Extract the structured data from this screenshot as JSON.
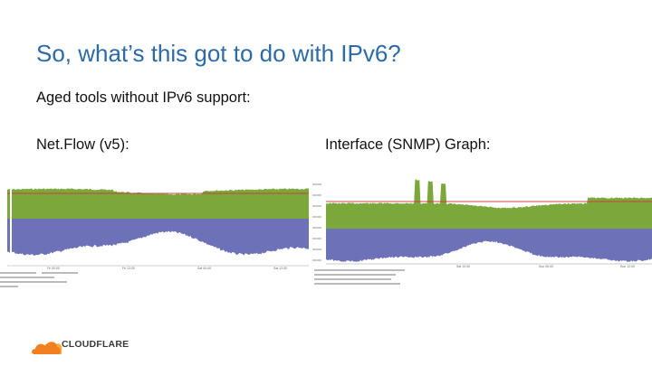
{
  "slide": {
    "title": "So, what’s this got to do with IPv6?",
    "subtitle": "Aged tools without IPv6 support:",
    "left_caption": "Net.Flow (v5):",
    "right_caption": "Interface (SNMP) Graph:"
  },
  "left_graph": {
    "in_color": "#7aa83a",
    "out_color": "#6d71b8",
    "threshold_color": "#d04040",
    "time_labels": [
      "Fri 00:00",
      "Fri 12:00",
      "Sat 00:00",
      "Sat 12:00"
    ]
  },
  "right_graph": {
    "in_color": "#7aa83a",
    "out_color": "#6d71b8",
    "threshold_color": "#d04040",
    "time_labels": [
      "Sat 12:00",
      "Sun 00:00",
      "Sun 12:00"
    ]
  },
  "logo": {
    "text": "CLOUDFLARE",
    "icon": "cloud-icon",
    "orange": "#f38020",
    "light_orange": "#faad3f"
  }
}
